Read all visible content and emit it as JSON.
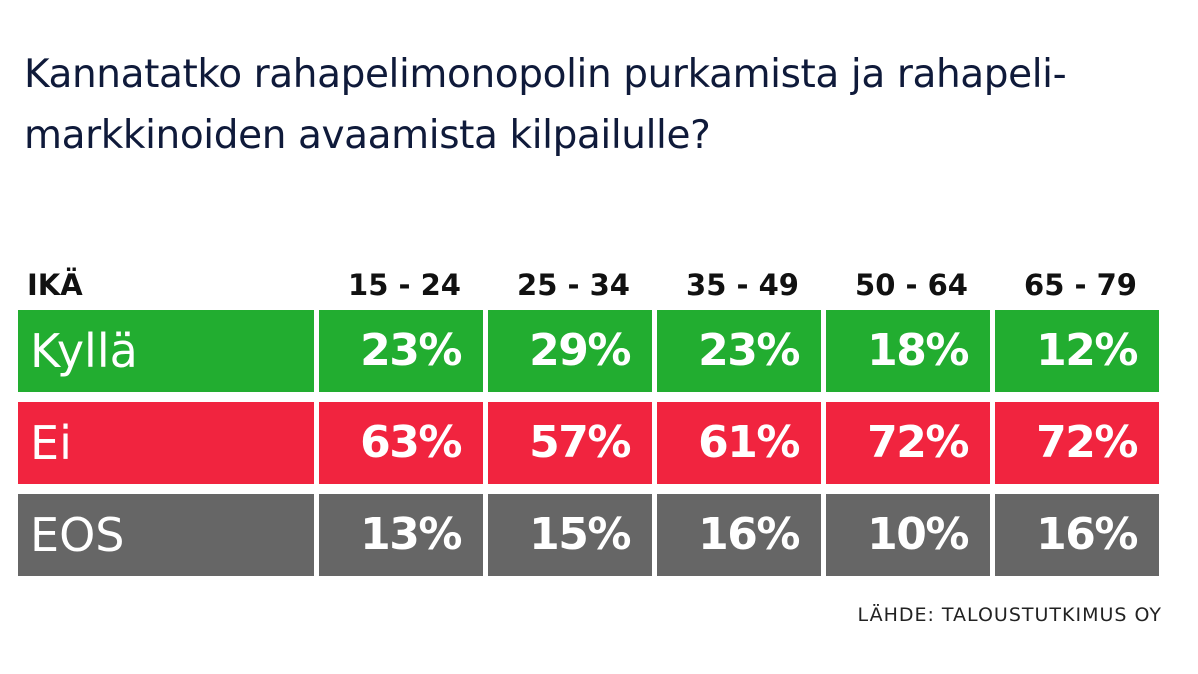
{
  "title": "Kannatatko rahapelimonopolin purkamista ja rahapeli-markkinoiden avaamista kilpailulle?",
  "source": "LÄHDE: TALOUSTUTKIMUS OY",
  "colors": {
    "yes": "#22ad30",
    "no": "#f1243f",
    "dont_know": "#666666"
  },
  "chart_data": {
    "type": "table",
    "title": "Kannatatko rahapelimonopolin purkamista ja rahapeli-markkinoiden avaamista kilpailulle?",
    "row_header": "IKÄ",
    "categories": [
      "15 - 24",
      "25 - 34",
      "35 - 49",
      "50 - 64",
      "65 - 79"
    ],
    "series": [
      {
        "name": "Kyllä",
        "values": [
          23,
          29,
          23,
          18,
          12
        ],
        "color": "#22ad30"
      },
      {
        "name": "Ei",
        "values": [
          63,
          57,
          61,
          72,
          72
        ],
        "color": "#f1243f"
      },
      {
        "name": "EOS",
        "values": [
          13,
          15,
          16,
          10,
          16
        ],
        "color": "#666666"
      }
    ],
    "unit": "%"
  }
}
